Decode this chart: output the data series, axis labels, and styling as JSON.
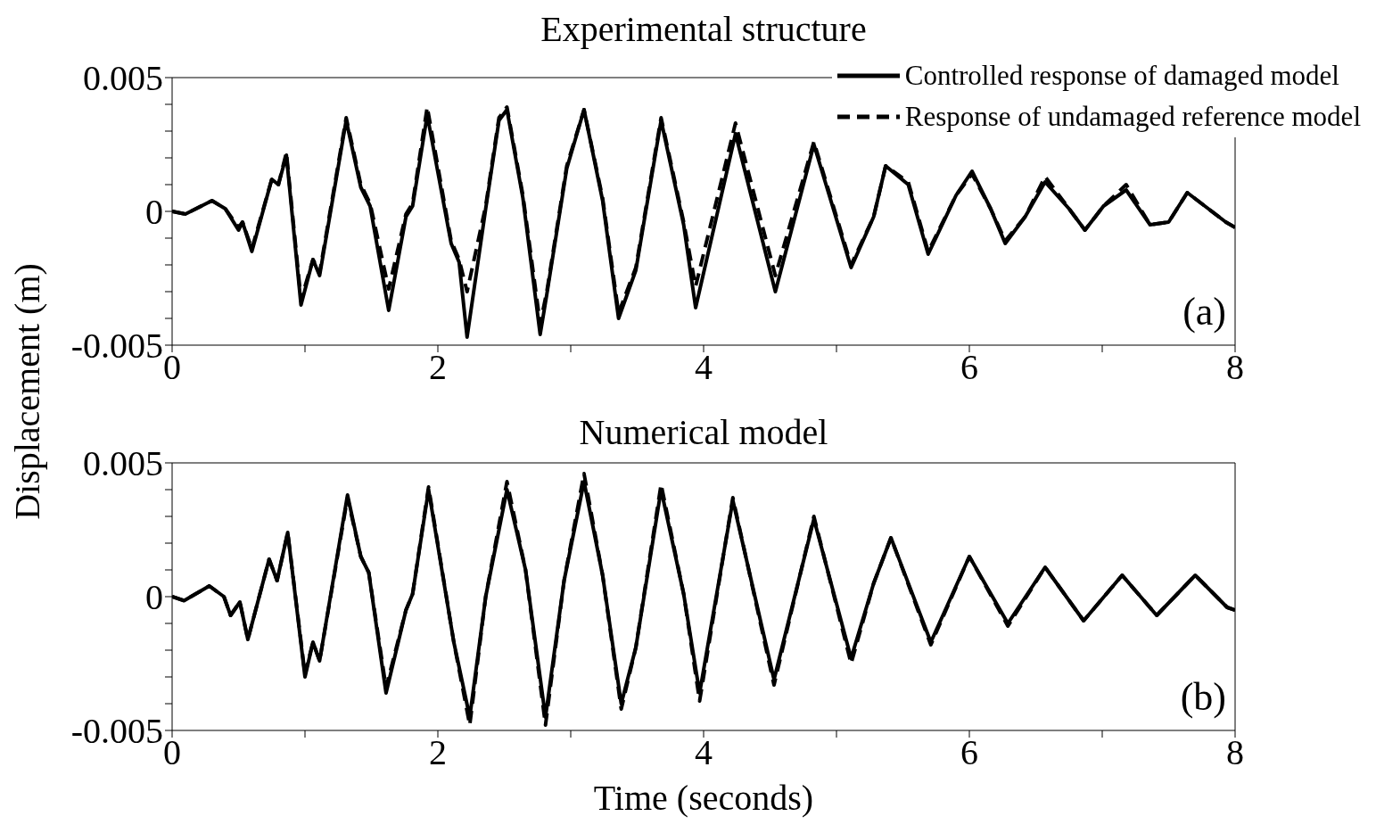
{
  "chart_data": [
    {
      "type": "line",
      "title": "Experimental structure",
      "ylabel": "Displacement (m)",
      "xlim": [
        0,
        8
      ],
      "xticks": [
        0,
        {
          "value": 1,
          "label": null
        },
        2,
        {
          "value": 3,
          "label": null
        },
        4,
        {
          "value": 5,
          "label": null
        },
        6,
        {
          "value": 7,
          "label": null
        },
        8
      ],
      "ylim": [
        -0.005,
        0.005
      ],
      "yticks": [
        -0.005,
        {
          "value": -0.004,
          "label": null
        },
        {
          "value": -0.003,
          "label": null
        },
        {
          "value": -0.002,
          "label": null
        },
        {
          "value": -0.001,
          "label": null
        },
        0,
        {
          "value": 0.001,
          "label": null
        },
        {
          "value": 0.002,
          "label": null
        },
        {
          "value": 0.003,
          "label": null
        },
        {
          "value": 0.004,
          "label": null
        },
        0.005
      ],
      "grid": false,
      "legend": "top right",
      "marker": "none",
      "annotations": [
        "(a)"
      ],
      "x": [
        0,
        0.1,
        0.3,
        0.4,
        0.5,
        0.53,
        0.6,
        0.75,
        0.8,
        0.86,
        0.97,
        1.06,
        1.11,
        1.31,
        1.42,
        1.49,
        1.63,
        1.76,
        1.81,
        1.92,
        2.1,
        2.16,
        2.22,
        2.36,
        2.46,
        2.52,
        2.64,
        2.77,
        2.82,
        2.97,
        3.1,
        3.24,
        3.36,
        3.49,
        3.68,
        3.85,
        3.94,
        4.24,
        4.54,
        4.83,
        5.11,
        5.28,
        5.37,
        5.54,
        5.69,
        5.9,
        6.02,
        6.16,
        6.27,
        6.42,
        6.57,
        6.75,
        6.87,
        7.01,
        7.18,
        7.36,
        7.5,
        7.64,
        7.93,
        8
      ],
      "series": [
        {
          "name": "Controlled response of damaged model",
          "color": "#000000",
          "line_style": "solid",
          "values": [
            0,
            -0.0001,
            0.0004,
            0.0001,
            -0.0007,
            -0.0004,
            -0.0015,
            0.0012,
            0.001,
            0.0021,
            -0.0035,
            -0.0018,
            -0.0024,
            0.0034,
            0.0009,
            0.0002,
            -0.0037,
            -0.0002,
            0.0002,
            0.0036,
            -0.0012,
            -0.0019,
            -0.0047,
            0.0001,
            0.0034,
            0.0038,
            0.0005,
            -0.0046,
            -0.0031,
            0.0016,
            0.0038,
            0.0004,
            -0.004,
            -0.0022,
            0.0034,
            -0.0005,
            -0.0036,
            0.0029,
            -0.003,
            0.0025,
            -0.0021,
            -0.0002,
            0.0017,
            0.001,
            -0.0016,
            0.0006,
            0.0015,
            0.0001,
            -0.0012,
            -0.0002,
            0.0011,
            0.0001,
            -0.0007,
            0.0002,
            0.0008,
            -0.0005,
            -0.0004,
            0.0007,
            -0.0004,
            -0.0006
          ]
        },
        {
          "name": "Response of undamaged reference model",
          "color": "#000000",
          "line_style": "dashed",
          "values": [
            0,
            -0.0001,
            0.0004,
            0.0001,
            -0.0006,
            -0.0004,
            -0.0014,
            0.0012,
            0.001,
            0.0022,
            -0.0033,
            -0.0018,
            -0.0023,
            0.0035,
            0.001,
            0.0003,
            -0.0029,
            -0.0001,
            0.0003,
            0.0039,
            -0.0011,
            -0.0018,
            -0.003,
            0.0002,
            0.0035,
            0.0039,
            0.0006,
            -0.0042,
            -0.003,
            0.0017,
            0.0038,
            0.0005,
            -0.0038,
            -0.0021,
            0.0035,
            -0.0004,
            -0.0028,
            0.0033,
            -0.0024,
            0.0026,
            -0.002,
            -0.0002,
            0.0017,
            0.0011,
            -0.0015,
            0.0006,
            0.0014,
            0.0001,
            -0.0011,
            -0.0002,
            0.0013,
            0.0001,
            -0.0007,
            0.0002,
            0.001,
            -0.0005,
            -0.0004,
            0.0007,
            -0.0004,
            -0.0006
          ]
        }
      ]
    },
    {
      "type": "line",
      "title": "Numerical model",
      "xlabel": "Time (seconds)",
      "xlim": [
        0,
        8
      ],
      "xticks": [
        0,
        {
          "value": 1,
          "label": null
        },
        2,
        {
          "value": 3,
          "label": null
        },
        4,
        {
          "value": 5,
          "label": null
        },
        6,
        {
          "value": 7,
          "label": null
        },
        8
      ],
      "ylim": [
        -0.005,
        0.005
      ],
      "yticks": [
        -0.005,
        {
          "value": -0.004,
          "label": null
        },
        {
          "value": -0.003,
          "label": null
        },
        {
          "value": -0.002,
          "label": null
        },
        {
          "value": -0.001,
          "label": null
        },
        0,
        {
          "value": 0.001,
          "label": null
        },
        {
          "value": 0.002,
          "label": null
        },
        {
          "value": 0.003,
          "label": null
        },
        {
          "value": 0.004,
          "label": null
        },
        0.005
      ],
      "grid": false,
      "marker": "none",
      "annotations": [
        "(b)"
      ],
      "x": [
        0,
        0.09,
        0.28,
        0.39,
        0.44,
        0.51,
        0.57,
        0.73,
        0.79,
        0.87,
        1.0,
        1.06,
        1.11,
        1.32,
        1.42,
        1.48,
        1.61,
        1.76,
        1.81,
        1.93,
        2.12,
        2.24,
        2.36,
        2.52,
        2.66,
        2.81,
        2.95,
        3.1,
        3.24,
        3.38,
        3.49,
        3.68,
        3.85,
        3.97,
        4.22,
        4.53,
        4.83,
        5.11,
        5.28,
        5.41,
        5.71,
        6.0,
        6.29,
        6.57,
        6.86,
        7.15,
        7.41,
        7.7,
        7.94,
        8
      ],
      "series": [
        {
          "color": "#000000",
          "line_style": "solid",
          "values": [
            0,
            -0.00015,
            0.0004,
            0,
            -0.0007,
            -0.0002,
            -0.0016,
            0.0014,
            0.0006,
            0.0024,
            -0.003,
            -0.0017,
            -0.0024,
            0.0038,
            0.0015,
            0.0009,
            -0.0036,
            -0.0005,
            0.0001,
            0.004,
            -0.0017,
            -0.0045,
            0,
            0.004,
            0.001,
            -0.0045,
            0.0006,
            0.0043,
            0.0008,
            -0.004,
            -0.0019,
            0.004,
            0.0001,
            -0.0036,
            0.0036,
            -0.0031,
            0.0029,
            -0.0023,
            0.0005,
            0.0022,
            -0.0017,
            0.0015,
            -0.001,
            0.0011,
            -0.0009,
            0.0008,
            -0.0007,
            0.0008,
            -0.0004,
            -0.0005
          ]
        },
        {
          "color": "#000000",
          "line_style": "dashed",
          "values": [
            0,
            -0.00015,
            0.0004,
            0,
            -0.0007,
            -0.0002,
            -0.0016,
            0.0014,
            0.0006,
            0.0024,
            -0.0029,
            -0.0017,
            -0.0024,
            0.0037,
            0.0015,
            0.0009,
            -0.0034,
            -0.0005,
            0.0001,
            0.0041,
            -0.0017,
            -0.0048,
            0,
            0.0043,
            0.001,
            -0.0048,
            0.0006,
            0.0046,
            0.0008,
            -0.0042,
            -0.0019,
            0.0042,
            0.0001,
            -0.0039,
            0.0037,
            -0.0033,
            0.003,
            -0.0025,
            0.0005,
            0.0022,
            -0.0018,
            0.0015,
            -0.0011,
            0.0011,
            -0.0009,
            0.0008,
            -0.0007,
            0.0008,
            -0.0004,
            -0.0005
          ]
        }
      ]
    }
  ]
}
